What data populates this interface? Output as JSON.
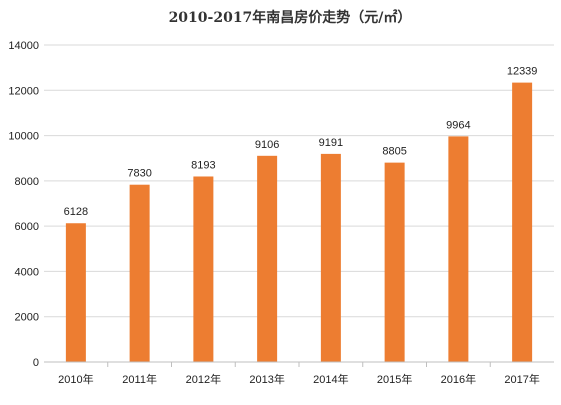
{
  "chart_data": {
    "type": "bar",
    "title": "2010-2017年南昌房价走势（元/㎡）",
    "xlabel": "",
    "ylabel": "",
    "categories": [
      "2010年",
      "2011年",
      "2012年",
      "2013年",
      "2014年",
      "2015年",
      "2016年",
      "2017年"
    ],
    "values": [
      6128,
      7830,
      8193,
      9106,
      9191,
      8805,
      9964,
      12339
    ],
    "ylim": [
      0,
      14000
    ],
    "yticks": [
      0,
      2000,
      4000,
      6000,
      8000,
      10000,
      12000,
      14000
    ],
    "grid": true,
    "legend": "none",
    "bar_color": "#ED7D31"
  }
}
